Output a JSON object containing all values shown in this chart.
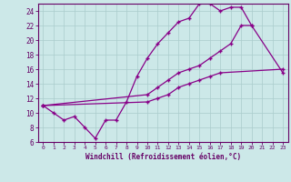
{
  "xlabel": "Windchill (Refroidissement éolien,°C)",
  "bg_color": "#cce8e8",
  "grid_color": "#aacccc",
  "line_color": "#880088",
  "xlim": [
    -0.5,
    23.5
  ],
  "ylim": [
    6,
    25
  ],
  "xticks": [
    0,
    1,
    2,
    3,
    4,
    5,
    6,
    7,
    8,
    9,
    10,
    11,
    12,
    13,
    14,
    15,
    16,
    17,
    18,
    19,
    20,
    21,
    22,
    23
  ],
  "yticks": [
    6,
    8,
    10,
    12,
    14,
    16,
    18,
    20,
    22,
    24
  ],
  "line1_x": [
    0,
    1,
    2,
    3,
    4,
    5,
    6,
    7,
    8,
    9,
    10,
    11,
    12,
    13,
    14,
    15,
    16,
    17,
    18,
    19,
    20
  ],
  "line1_y": [
    11,
    10,
    9,
    9.5,
    8,
    6.5,
    9,
    9,
    11.5,
    15,
    17.5,
    19.5,
    21,
    22.5,
    23,
    25,
    25,
    24,
    24.5,
    24.5,
    22
  ],
  "line2_x": [
    0,
    10,
    11,
    12,
    13,
    14,
    15,
    16,
    17,
    18,
    19,
    20,
    23
  ],
  "line2_y": [
    11,
    12.5,
    13.5,
    14.5,
    15.5,
    16,
    16.5,
    17.5,
    18.5,
    19.5,
    22,
    22,
    15.5
  ],
  "line3_x": [
    0,
    10,
    11,
    12,
    13,
    14,
    15,
    16,
    17,
    23
  ],
  "line3_y": [
    11,
    11.5,
    12,
    12.5,
    13.5,
    14,
    14.5,
    15,
    15.5,
    16
  ]
}
